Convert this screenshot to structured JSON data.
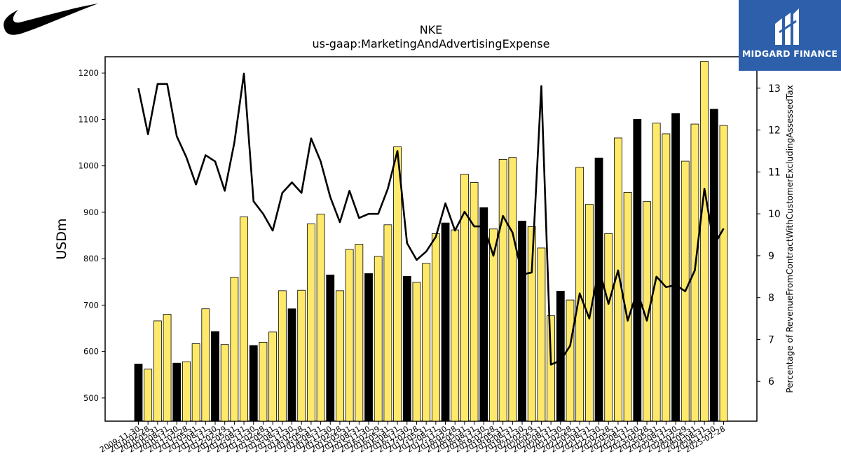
{
  "brand": {
    "company_logo": "nike-swoosh-icon",
    "watermark_text": "MIDGARD FINANCE",
    "watermark_color": "#2d5fab"
  },
  "chart_data": {
    "type": "bar",
    "title": "NKE",
    "subtitle": "us-gaap:MarketingAndAdvertisingExpense",
    "ylabel": "USDm",
    "y2label": "Percentage of RevenueFromContractWithCustomerExcludingAssessedTax",
    "ylim": [
      450,
      1235
    ],
    "y2lim": [
      5.05,
      13.75
    ],
    "yticks": [
      500,
      600,
      700,
      800,
      900,
      1000,
      1100,
      1200
    ],
    "y2ticks": [
      6,
      7,
      8,
      9,
      10,
      11,
      12,
      13
    ],
    "colors": {
      "annual_bar": "#000000",
      "quarter_bar": "#ffe96b",
      "line": "#000000"
    },
    "x": [
      "2009-11-30",
      "2010-02-28",
      "2010-05-31",
      "2010-08-31",
      "2010-11-30",
      "2011-02-28",
      "2011-05-31",
      "2011-08-31",
      "2011-11-30",
      "2012-02-29",
      "2012-05-31",
      "2012-08-31",
      "2012-11-30",
      "2013-02-28",
      "2013-05-31",
      "2013-08-31",
      "2013-11-30",
      "2014-02-28",
      "2014-05-31",
      "2014-08-31",
      "2014-11-30",
      "2015-02-28",
      "2015-05-31",
      "2015-08-31",
      "2015-11-30",
      "2016-02-29",
      "2016-05-31",
      "2016-08-31",
      "2016-11-30",
      "2017-02-28",
      "2017-05-31",
      "2017-08-31",
      "2017-11-30",
      "2018-02-28",
      "2018-05-31",
      "2018-08-31",
      "2018-11-30",
      "2019-02-28",
      "2019-05-31",
      "2019-08-31",
      "2019-11-30",
      "2020-02-29",
      "2020-05-31",
      "2020-08-31",
      "2020-11-30",
      "2021-02-28",
      "2021-05-31",
      "2021-08-31",
      "2021-11-30",
      "2022-02-28",
      "2022-05-31",
      "2022-08-31",
      "2022-11-30",
      "2023-02-28",
      "2023-05-31",
      "2023-08-31",
      "2023-11-30",
      "2024-02-29",
      "2024-05-31",
      "2024-08-31",
      "2024-11-30",
      "2025-02-28"
    ],
    "xtick_labels": [
      "2009-11-30",
      "2010-02-28",
      "2010-05-31",
      "2010-08-31",
      "2010-11-30",
      "2011-02-28",
      "2011-05-31",
      "2011-08-31",
      "2011-11-30",
      "2012-02-29",
      "2012-05-31",
      "2012-08-31",
      "2012-11-30",
      "2013-02-28",
      "2013-05-31",
      "2013-08-31",
      "2013-11-30",
      "2014-02-28",
      "2014-05-31",
      "2014-08-31",
      "2014-11-30",
      "2015-02-28",
      "2015-05-31",
      "2015-08-31",
      "2015-11-30",
      "2016-02-29",
      "2016-05-31",
      "2016-08-31",
      "2016-11-30",
      "2017-02-28",
      "2017-05-31",
      "2017-08-31",
      "2017-11-30",
      "2018-02-28",
      "2018-05-31",
      "2018-08-31",
      "2018-11-30",
      "2019-02-28",
      "2019-05-31",
      "2019-08-31",
      "2019-11-30",
      "2020-02-29",
      "2020-05-31",
      "2020-08-31",
      "2020-11-30",
      "2021-02-28",
      "2021-05-31",
      "2021-08-31",
      "2021-11-30",
      "2022-02-28",
      "2022-05-31",
      "2022-08-31",
      "2022-11-30",
      "2023-02-28",
      "2023-05-31",
      "2023-08-31",
      "2023-11-30",
      "2024-02-29",
      "2024-05-31",
      "2024-08-31",
      "2024-11-30",
      "2025-02-28"
    ],
    "series": [
      {
        "type": "bar",
        "axis": "left",
        "values": [
          573,
          562,
          666,
          680,
          575,
          578,
          617,
          692,
          643,
          615,
          760,
          890,
          613,
          620,
          642,
          731,
          692,
          732,
          875,
          896,
          765,
          731,
          820,
          831,
          768,
          805,
          873,
          1041,
          762,
          749,
          790,
          854,
          877,
          862,
          982,
          964,
          910,
          864,
          1014,
          1018,
          881,
          869,
          823,
          677,
          730,
          711,
          997,
          917,
          1017,
          854,
          1060,
          943,
          1100,
          923,
          1092,
          1069,
          1113,
          1010,
          1090,
          1225,
          1122,
          1087
        ],
        "annual_flags": [
          1,
          0,
          0,
          0,
          1,
          0,
          0,
          0,
          1,
          0,
          0,
          0,
          1,
          0,
          0,
          0,
          1,
          0,
          0,
          0,
          1,
          0,
          0,
          0,
          1,
          0,
          0,
          0,
          1,
          0,
          0,
          0,
          1,
          0,
          0,
          0,
          1,
          0,
          0,
          0,
          1,
          0,
          0,
          0,
          1,
          0,
          0,
          0,
          1,
          0,
          0,
          0,
          1,
          0,
          0,
          0,
          1,
          0,
          0,
          0,
          1,
          0
        ]
      },
      {
        "type": "line",
        "axis": "right",
        "values": [
          13.0,
          11.9,
          13.1,
          13.1,
          11.85,
          11.35,
          10.7,
          11.4,
          11.25,
          10.55,
          11.7,
          13.35,
          10.3,
          10.0,
          9.6,
          10.5,
          10.75,
          10.5,
          11.8,
          11.25,
          10.4,
          9.8,
          10.55,
          9.9,
          10.0,
          10.0,
          10.6,
          11.5,
          9.3,
          8.9,
          9.1,
          9.45,
          10.25,
          9.6,
          10.05,
          9.7,
          9.7,
          9.0,
          9.95,
          9.55,
          8.55,
          8.6,
          13.05,
          6.4,
          6.5,
          6.85,
          8.1,
          7.5,
          8.7,
          7.85,
          8.65,
          7.45,
          8.15,
          7.45,
          8.5,
          8.25,
          8.3,
          8.15,
          8.65,
          10.6,
          9.25,
          9.65
        ]
      }
    ]
  }
}
